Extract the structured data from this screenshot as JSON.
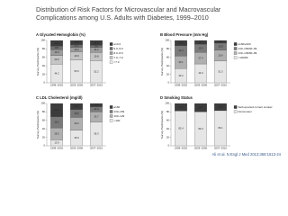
{
  "slide": {
    "title_line_1": "Distribution of Risk Factors for Microvascular and Macrovascular",
    "title_line_2": "Complications among U.S. Adults with Diabetes, 1999–2010",
    "title_line_3": "",
    "citation": "Ali et al. N Engl J Med 2013;368:1613-24"
  },
  "chart_data": [
    {
      "type": "bar",
      "stacked": true,
      "title": "A Glycated Hemoglobin (%)",
      "y_label": "Survey Participants (%)",
      "categories": [
        "1999–2002",
        "2003–2006",
        "2007–2010"
      ],
      "ylim": [
        0,
        100
      ],
      "yticks": [
        0,
        20,
        40,
        60,
        80,
        100
      ],
      "series": [
        {
          "name": "<7.0",
          "color": "#e6e6e6",
          "values": [
            44.2,
            53.5,
            52.2
          ]
        },
        {
          "name": "7.0–7.9",
          "color": "#c4c4c4",
          "values": [
            20.5,
            19.9,
            19.8
          ]
        },
        {
          "name": "8.0–8.9",
          "color": "#9c9c9c",
          "values": [
            13.3,
            10.2,
            11.2
          ]
        },
        {
          "name": "9.0–9.9",
          "color": "#6e6e6e",
          "values": [
            8.8,
            6.1,
            5.6
          ]
        },
        {
          "name": "≥10.0",
          "color": "#3c3c3c",
          "values": [
            13.2,
            10.3,
            11.2
          ]
        }
      ]
    },
    {
      "type": "bar",
      "stacked": true,
      "title": "B Blood Pressure (mm Hg)",
      "y_label": "Survey Participants (%)",
      "categories": [
        "1999–2002",
        "2003–2006",
        "2007–2010"
      ],
      "ylim": [
        0,
        100
      ],
      "yticks": [
        0,
        20,
        40,
        60,
        80,
        100
      ],
      "series": [
        {
          "name": "<130/80",
          "color": "#e6e6e6",
          "values": [
            33.2,
            44.6,
            51.3
          ]
        },
        {
          "name": "130–139/80–89",
          "color": "#b0b0b0",
          "values": [
            30.1,
            27.4,
            25.6
          ]
        },
        {
          "name": "140–159/90–99",
          "color": "#7a7a7a",
          "values": [
            24.3,
            19.3,
            16.8
          ]
        },
        {
          "name": "≥160/≥100",
          "color": "#3c3c3c",
          "values": [
            12.4,
            8.7,
            6.3
          ]
        }
      ]
    },
    {
      "type": "bar",
      "stacked": true,
      "title": "C LDL Cholesterol (mg/dl)",
      "y_label": "Survey Participants (%)",
      "categories": [
        "1999–2002",
        "2003–2006",
        "2007–2010"
      ],
      "ylim": [
        0,
        100
      ],
      "yticks": [
        0,
        20,
        40,
        60,
        80,
        100
      ],
      "series": [
        {
          "name": "<100",
          "color": "#e6e6e6",
          "values": [
            13.9,
            36.9,
            56.3
          ]
        },
        {
          "name": "100–129",
          "color": "#b0b0b0",
          "values": [
            28.5,
            30.2,
            23.7
          ]
        },
        {
          "name": "130–159",
          "color": "#7a7a7a",
          "values": [
            26.2,
            18.6,
            12.4
          ]
        },
        {
          "name": "≥160",
          "color": "#3c3c3c",
          "values": [
            31.4,
            14.3,
            7.6
          ]
        }
      ]
    },
    {
      "type": "bar",
      "stacked": true,
      "title": "D Smoking Status",
      "y_label": "Survey Participants (%)",
      "categories": [
        "1999–2002",
        "2003–2006",
        "2007–2010"
      ],
      "ylim": [
        0,
        100
      ],
      "yticks": [
        0,
        20,
        40,
        60,
        80,
        100
      ],
      "series": [
        {
          "name": "Nonsmoker",
          "color": "#e6e6e6",
          "values": [
            82.4,
            80.3,
            83.1
          ]
        },
        {
          "name": "Self-reported current smoker",
          "color": "#3c3c3c",
          "values": [
            17.6,
            19.7,
            16.9
          ]
        }
      ]
    }
  ]
}
